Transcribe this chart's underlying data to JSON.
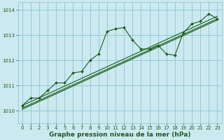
{
  "bg_color": "#cce9f0",
  "grid_color": "#88c4d4",
  "line_color": "#1a5c1a",
  "marker_color": "#1a5c1a",
  "xlabel": "Graphe pression niveau de la mer (hPa)",
  "xlabel_fontsize": 6.5,
  "ylim": [
    1009.5,
    1014.3
  ],
  "xlim": [
    -0.5,
    23.5
  ],
  "yticks": [
    1010,
    1011,
    1012,
    1013,
    1014
  ],
  "xticks": [
    0,
    1,
    2,
    3,
    4,
    5,
    6,
    7,
    8,
    9,
    10,
    11,
    12,
    13,
    14,
    15,
    16,
    17,
    18,
    19,
    20,
    21,
    22,
    23
  ],
  "trend1_x": [
    0,
    23
  ],
  "trend1_y": [
    1010.2,
    1013.75
  ],
  "trend2_x": [
    0,
    23
  ],
  "trend2_y": [
    1010.1,
    1013.65
  ],
  "trend3_x": [
    0,
    23
  ],
  "trend3_y": [
    1010.05,
    1013.6
  ],
  "data_x": [
    0,
    1,
    2,
    3,
    4,
    5,
    6,
    7,
    8,
    9,
    10,
    11,
    12,
    13,
    14,
    15,
    16,
    17,
    18,
    19,
    20,
    21,
    22,
    23
  ],
  "data_y": [
    1010.2,
    1010.5,
    1010.5,
    1010.8,
    1011.1,
    1011.1,
    1011.5,
    1011.55,
    1012.0,
    1012.25,
    1013.15,
    1013.25,
    1013.3,
    1012.8,
    1012.45,
    1012.45,
    1012.6,
    1012.25,
    1012.2,
    1013.1,
    1013.45,
    1013.55,
    1013.85,
    1013.65
  ],
  "tick_fontsize": 5.0,
  "tick_color": "#1a5c1a",
  "xlabel_color": "#1a5c1a",
  "xlabel_bold": true
}
